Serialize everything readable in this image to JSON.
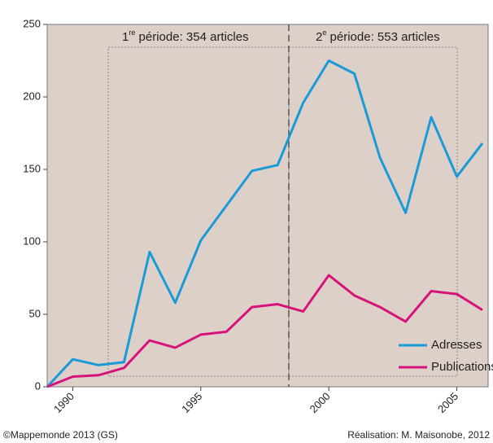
{
  "chart_data": {
    "type": "line",
    "x": [
      1989,
      1990,
      1991,
      1992,
      1993,
      1994,
      1995,
      1996,
      1997,
      1998,
      1999,
      2000,
      2001,
      2002,
      2003,
      2004,
      2005,
      2006
    ],
    "series": [
      {
        "name": "Adresses",
        "color": "#1a9ad6",
        "values": [
          0,
          19,
          15,
          17,
          93,
          58,
          101,
          125,
          149,
          153,
          196,
          225,
          216,
          158,
          120,
          186,
          145,
          168
        ]
      },
      {
        "name": "Publications",
        "color": "#d6137a",
        "values": [
          0,
          7,
          8,
          13,
          32,
          27,
          36,
          38,
          55,
          57,
          52,
          77,
          63,
          55,
          45,
          66,
          64,
          53
        ]
      }
    ],
    "xlim": [
      1989,
      2006
    ],
    "xticks": [
      1990,
      1995,
      2000,
      2005
    ],
    "ylim": [
      0,
      250
    ],
    "yticks": [
      0,
      50,
      100,
      150,
      200,
      250
    ],
    "annotations": [
      {
        "lead": "1",
        "sup": "re",
        "rest": " période: 354 articles"
      },
      {
        "lead": "2",
        "sup": "e",
        "rest": " période: 553 articles"
      }
    ],
    "legend": "lower right",
    "footer": {
      "left": "©Mappemonde 2013 (GS)",
      "right": "Réalisation: M. Maisonobe, 2012"
    }
  }
}
